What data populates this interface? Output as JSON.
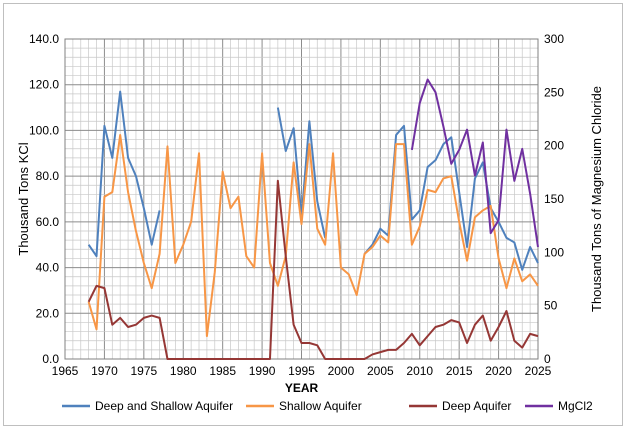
{
  "chart_data": {
    "type": "line",
    "title": "",
    "xlabel": "YEAR",
    "ylabel": "Thousand Tons KCl",
    "y2label": "Thousand Tons of Magnesium Chloride",
    "xlim": [
      1965,
      2025
    ],
    "ylim": [
      0,
      140
    ],
    "y2lim": [
      0,
      300
    ],
    "x_ticks": [
      "1965",
      "1970",
      "1975",
      "1980",
      "1985",
      "1990",
      "1995",
      "2000",
      "2005",
      "2010",
      "2015",
      "2020",
      "2025"
    ],
    "y_ticks": [
      "0.0",
      "20.0",
      "40.0",
      "60.0",
      "80.0",
      "100.0",
      "120.0",
      "140.0"
    ],
    "y2_ticks": [
      "0",
      "50",
      "100",
      "150",
      "200",
      "250",
      "300"
    ],
    "grid": true,
    "legend_position": "bottom",
    "series": [
      {
        "name": "Deep and Shallow Aquifer",
        "color": "#4f81bd",
        "axis": "left",
        "x": [
          1968,
          1969,
          1970,
          1971,
          1972,
          1973,
          1974,
          1975,
          1976,
          1977,
          null,
          1992,
          1993,
          1994,
          1995,
          1996,
          1997,
          1998,
          null,
          2003,
          2004,
          2005,
          2006,
          2007,
          2008,
          2009,
          2010,
          2011,
          2012,
          2013,
          2014,
          2015,
          2016,
          2017,
          2018,
          2019,
          2020,
          2021,
          2022,
          2023,
          2024,
          2025
        ],
        "values": [
          50,
          45,
          102,
          88,
          117,
          88,
          80,
          66,
          50,
          65,
          null,
          110,
          91,
          101,
          62,
          104,
          69,
          53,
          null,
          46,
          50,
          57,
          54,
          98,
          102,
          61,
          65,
          84,
          87,
          94,
          97,
          73,
          49,
          79,
          86,
          66,
          60,
          53,
          51,
          39,
          49,
          42
        ]
      },
      {
        "name": "Shallow Aquifer",
        "color": "#f79646",
        "axis": "left",
        "x": [
          1968,
          1969,
          1970,
          1971,
          1972,
          1973,
          1974,
          1975,
          1976,
          1977,
          1978,
          1979,
          1980,
          1981,
          1982,
          1983,
          1984,
          1985,
          1986,
          1987,
          1988,
          1989,
          1990,
          1991,
          1992,
          1993,
          1994,
          1995,
          1996,
          1997,
          1998,
          1999,
          2000,
          2001,
          2002,
          2003,
          2004,
          2005,
          2006,
          2007,
          2008,
          2009,
          2010,
          2011,
          2012,
          2013,
          2014,
          2015,
          2016,
          2017,
          2018,
          2019,
          2020,
          2021,
          2022,
          2023,
          2024,
          2025
        ],
        "values": [
          25,
          13,
          71,
          73,
          98,
          73,
          56,
          42,
          31,
          46,
          93,
          42,
          50,
          60,
          90,
          10,
          38,
          82,
          66,
          71,
          45,
          40,
          90,
          42,
          32,
          45,
          86,
          59,
          94,
          57,
          50,
          90,
          40,
          37,
          28,
          46,
          49,
          54,
          51,
          94,
          94,
          50,
          58,
          74,
          73,
          79,
          80,
          60,
          43,
          62,
          65,
          67,
          44,
          31,
          44,
          34,
          37,
          32
        ]
      },
      {
        "name": "Deep Aquifer",
        "color": "#953735",
        "axis": "left",
        "x": [
          1968,
          1969,
          1970,
          1971,
          1972,
          1973,
          1974,
          1975,
          1976,
          1977,
          1978,
          1979,
          1980,
          1981,
          1982,
          1983,
          1984,
          1985,
          1986,
          1987,
          1988,
          1989,
          1990,
          1991,
          1992,
          1993,
          1994,
          1995,
          1996,
          1997,
          1998,
          1999,
          2000,
          2001,
          2002,
          2003,
          2004,
          2005,
          2006,
          2007,
          2008,
          2009,
          2010,
          2011,
          2012,
          2013,
          2014,
          2015,
          2016,
          2017,
          2018,
          2019,
          2020,
          2021,
          2022,
          2023,
          2024,
          2025
        ],
        "values": [
          25,
          32,
          31,
          15,
          18,
          14,
          15,
          18,
          19,
          18,
          0,
          0,
          0,
          0,
          0,
          0,
          0,
          0,
          0,
          0,
          0,
          0,
          0,
          0,
          78,
          45,
          15,
          7,
          7,
          6,
          0,
          0,
          0,
          0,
          0,
          0,
          2,
          3,
          4,
          4,
          7,
          11,
          6,
          10,
          14,
          15,
          17,
          16,
          7,
          15,
          19,
          8,
          14,
          21,
          8,
          5,
          11,
          10
        ]
      },
      {
        "name": "MgCl2",
        "color": "#7030a0",
        "axis": "right",
        "x": [
          2009,
          2010,
          2011,
          2012,
          2013,
          2014,
          2015,
          2016,
          2017,
          2018,
          2019,
          2020,
          2021,
          2022,
          2023,
          2024,
          2025
        ],
        "values": [
          196,
          240,
          262,
          250,
          218,
          183,
          196,
          215,
          172,
          203,
          118,
          130,
          215,
          167,
          197,
          155,
          105
        ]
      }
    ]
  }
}
